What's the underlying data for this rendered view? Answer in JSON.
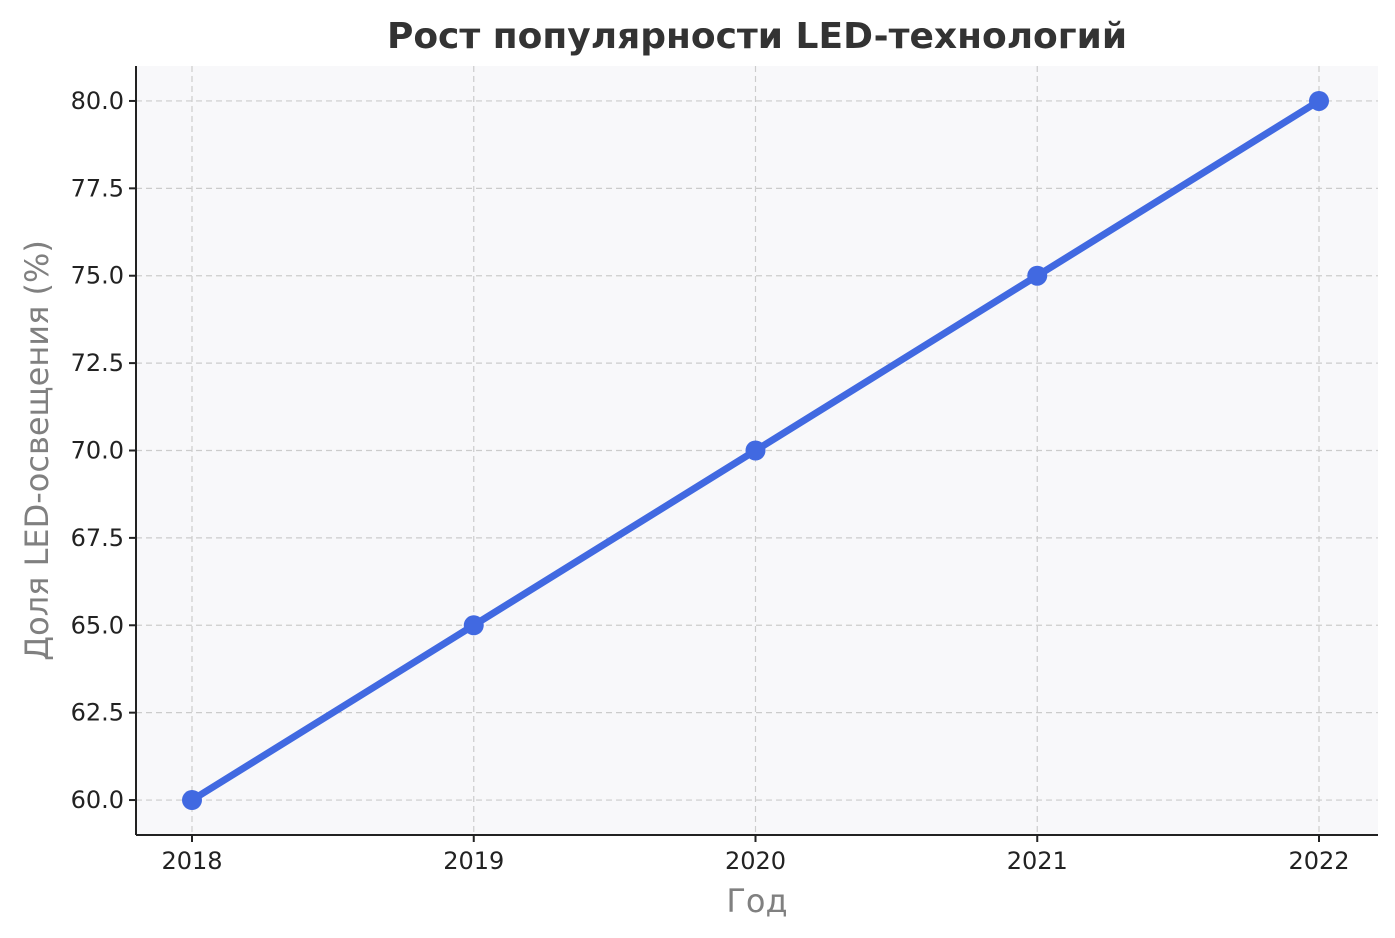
{
  "chart_data": {
    "type": "line",
    "title": "Рост популярности LED-технологий",
    "xlabel": "Год",
    "ylabel": "Доля LED-освещения (%)",
    "x": [
      "2018",
      "2019",
      "2020",
      "2021",
      "2022"
    ],
    "series": [
      {
        "values": [
          60.0,
          65.0,
          70.0,
          75.0,
          80.0
        ]
      }
    ],
    "yticks": [
      "60.0",
      "62.5",
      "65.0",
      "67.5",
      "70.0",
      "72.5",
      "75.0",
      "77.5",
      "80.0"
    ],
    "ylim": [
      59,
      81
    ],
    "grid": true,
    "colors": {
      "line": "#4169E1",
      "plot_background": "#F8F8FA",
      "grid": "#CCCCCC",
      "title": "#333333",
      "axis_label": "#808080"
    }
  }
}
